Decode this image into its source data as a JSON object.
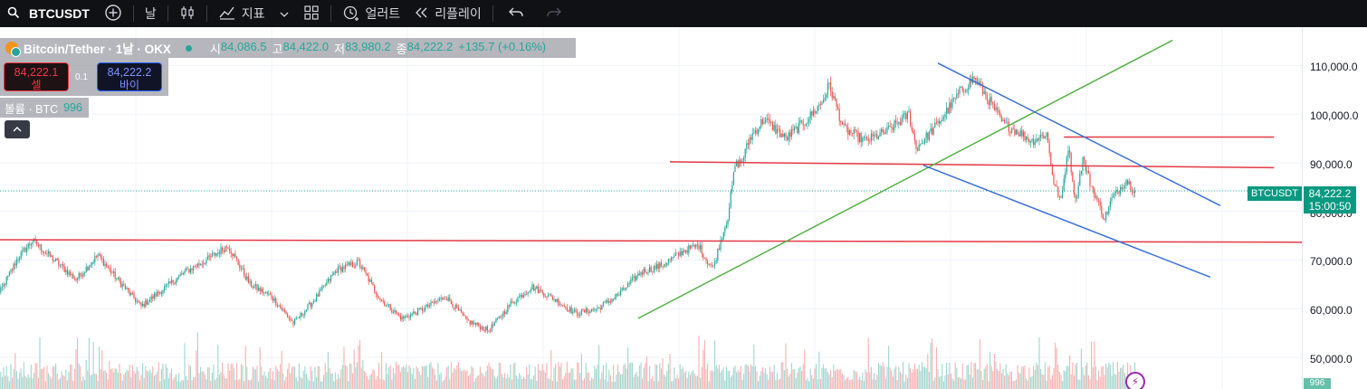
{
  "toolbar": {
    "symbol": "BTCUSDT",
    "interval": "날",
    "indicators_label": "지표",
    "alerts_label": "얼러트",
    "replay_label": "리플레이"
  },
  "legend": {
    "title": "Bitcoin/Tether · 1날 · OKX",
    "open_label": "시",
    "open": "84,086.5",
    "high_label": "고",
    "high": "84,422.0",
    "low_label": "저",
    "low": "83,980.2",
    "close_label": "종",
    "close": "84,222.2",
    "change": "+135.7 (+0.16%)"
  },
  "trade": {
    "sell_price": "84,222.1",
    "sell_label": "셀",
    "spread": "0.1",
    "buy_price": "84,222.2",
    "buy_label": "바이"
  },
  "volume_legend": {
    "label": "볼륨 · BTC",
    "value": "996"
  },
  "price_tag": {
    "symbol": "BTCUSDT",
    "price": "84,222.2",
    "countdown": "15:00:50"
  },
  "volume_tag": "996",
  "price_scale": [
    "110,000.0",
    "100,000.0",
    "90,000.0",
    "80,000.0",
    "70,000.0",
    "60,000.0",
    "50,000.0"
  ],
  "colors": {
    "up": "#26a69a",
    "down": "#ef5350",
    "support": "#e53946",
    "channel": "#3a6fd9",
    "trend": "#52b043"
  },
  "icons": [
    "search-icon",
    "add-symbol-icon",
    "candles-icon",
    "indicators-icon",
    "layout-icon",
    "alarm-icon",
    "replay-icon",
    "undo-icon",
    "redo-icon",
    "collapse-icon",
    "lightning-icon"
  ],
  "chart_data": {
    "type": "candlestick",
    "symbol": "BTCUSDT",
    "ylim": [
      46000,
      118000
    ],
    "last_price": 84222.2,
    "anchors": [
      [
        0,
        62000
      ],
      [
        15,
        70500
      ],
      [
        25,
        74000
      ],
      [
        40,
        70000
      ],
      [
        55,
        66000
      ],
      [
        70,
        71000
      ],
      [
        85,
        65500
      ],
      [
        100,
        60500
      ],
      [
        115,
        64000
      ],
      [
        130,
        67500
      ],
      [
        145,
        70000
      ],
      [
        160,
        73000
      ],
      [
        175,
        65000
      ],
      [
        190,
        62500
      ],
      [
        205,
        57000
      ],
      [
        220,
        62000
      ],
      [
        235,
        68000
      ],
      [
        250,
        69500
      ],
      [
        265,
        62000
      ],
      [
        280,
        58000
      ],
      [
        295,
        60000
      ],
      [
        310,
        62500
      ],
      [
        325,
        57500
      ],
      [
        340,
        55500
      ],
      [
        355,
        61000
      ],
      [
        370,
        64500
      ],
      [
        385,
        62000
      ],
      [
        400,
        59000
      ],
      [
        415,
        60000
      ],
      [
        430,
        63000
      ],
      [
        445,
        67500
      ],
      [
        460,
        69000
      ],
      [
        475,
        72000
      ],
      [
        485,
        73000
      ],
      [
        490,
        70000
      ],
      [
        495,
        68500
      ],
      [
        500,
        74000
      ],
      [
        505,
        79000
      ],
      [
        510,
        89500
      ],
      [
        515,
        90500
      ],
      [
        520,
        95000
      ],
      [
        530,
        99000
      ],
      [
        545,
        95000
      ],
      [
        560,
        99000
      ],
      [
        570,
        102500
      ],
      [
        575,
        106000
      ],
      [
        585,
        97000
      ],
      [
        600,
        94500
      ],
      [
        615,
        96500
      ],
      [
        630,
        100000
      ],
      [
        635,
        93000
      ],
      [
        650,
        98000
      ],
      [
        665,
        104500
      ],
      [
        675,
        107500
      ],
      [
        685,
        103000
      ],
      [
        695,
        98000
      ],
      [
        705,
        96500
      ],
      [
        715,
        94500
      ],
      [
        725,
        96000
      ],
      [
        730,
        86000
      ],
      [
        735,
        82000
      ],
      [
        740,
        93500
      ],
      [
        745,
        82000
      ],
      [
        750,
        91000
      ],
      [
        755,
        86000
      ],
      [
        765,
        78500
      ],
      [
        770,
        82500
      ],
      [
        780,
        86500
      ],
      [
        786,
        84222
      ]
    ],
    "trendlines": [
      {
        "type": "support",
        "from": [
          -15,
          74200
        ],
        "to": [
          1050,
          73600
        ]
      },
      {
        "type": "resistance",
        "from": [
          465,
          90200
        ],
        "to": [
          882,
          89000
        ]
      },
      {
        "type": "resistance",
        "from": [
          737,
          95300
        ],
        "to": [
          882,
          95300
        ]
      },
      {
        "type": "uptrend",
        "from": [
          443,
          58000
        ],
        "to": [
          812,
          115200
        ]
      },
      {
        "type": "channel-upper",
        "from": [
          650,
          110500
        ],
        "to": [
          845,
          81200
        ]
      },
      {
        "type": "channel-lower",
        "from": [
          640,
          89500
        ],
        "to": [
          838,
          66500
        ]
      }
    ]
  }
}
